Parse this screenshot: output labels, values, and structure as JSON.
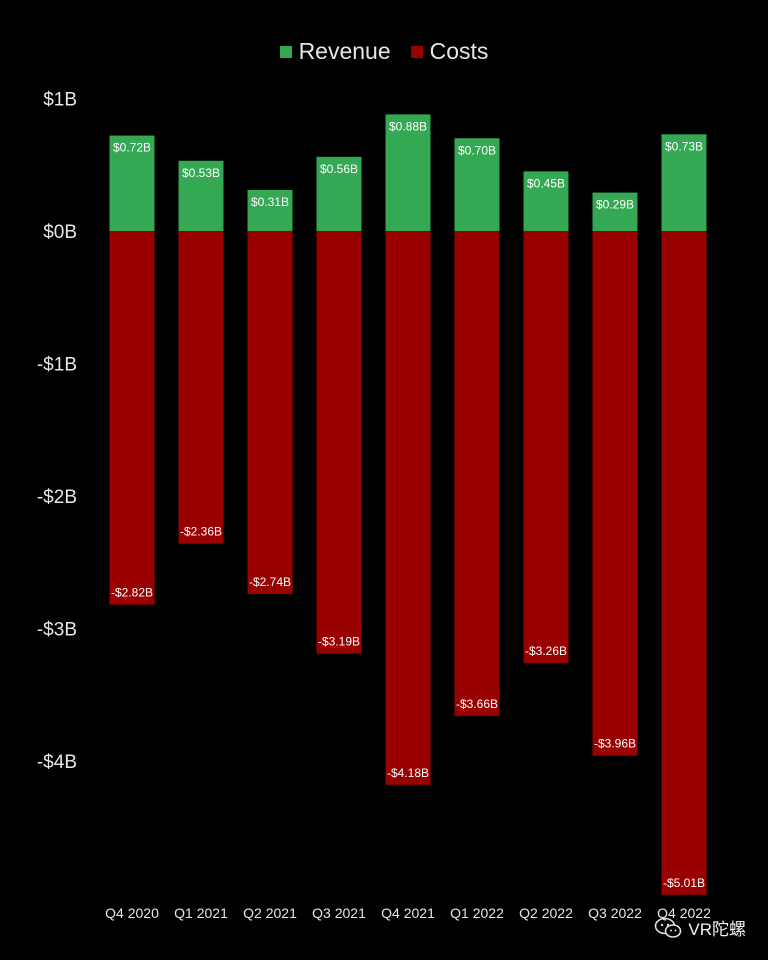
{
  "legend": {
    "revenue_label": "Revenue",
    "costs_label": "Costs"
  },
  "colors": {
    "revenue": "#34a853",
    "costs": "#990000",
    "background": "#000000",
    "text": "#e6e6e6"
  },
  "watermark": {
    "text": "VR陀螺",
    "icon": "wechat-icon"
  },
  "chart_data": {
    "type": "bar",
    "stacked": true,
    "categories": [
      "Q4 2020",
      "Q1 2021",
      "Q2 2021",
      "Q3 2021",
      "Q4 2021",
      "Q1 2022",
      "Q2 2022",
      "Q3 2022",
      "Q4 2022"
    ],
    "series": [
      {
        "name": "Revenue",
        "values": [
          0.72,
          0.53,
          0.31,
          0.56,
          0.88,
          0.7,
          0.45,
          0.29,
          0.73
        ],
        "labels": [
          "$0.72B",
          "$0.53B",
          "$0.31B",
          "$0.56B",
          "$0.88B",
          "$0.70B",
          "$0.45B",
          "$0.29B",
          "$0.73B"
        ]
      },
      {
        "name": "Costs",
        "values": [
          -2.82,
          -2.36,
          -2.74,
          -3.19,
          -4.18,
          -3.66,
          -3.26,
          -3.96,
          -5.01
        ],
        "labels": [
          "-$2.82B",
          "-$2.36B",
          "-$2.74B",
          "-$3.19B",
          "-$4.18B",
          "-$3.66B",
          "-$3.26B",
          "-$3.96B",
          "-$5.01B"
        ]
      }
    ],
    "yticks": [
      1,
      0,
      -1,
      -2,
      -3,
      -4
    ],
    "ytick_labels": [
      "$1B",
      "$0B",
      "-$1B",
      "-$2B",
      "-$3B",
      "-$4B"
    ],
    "ylim": [
      -5.01,
      1
    ],
    "grid": false,
    "legend_position": "top-center"
  }
}
